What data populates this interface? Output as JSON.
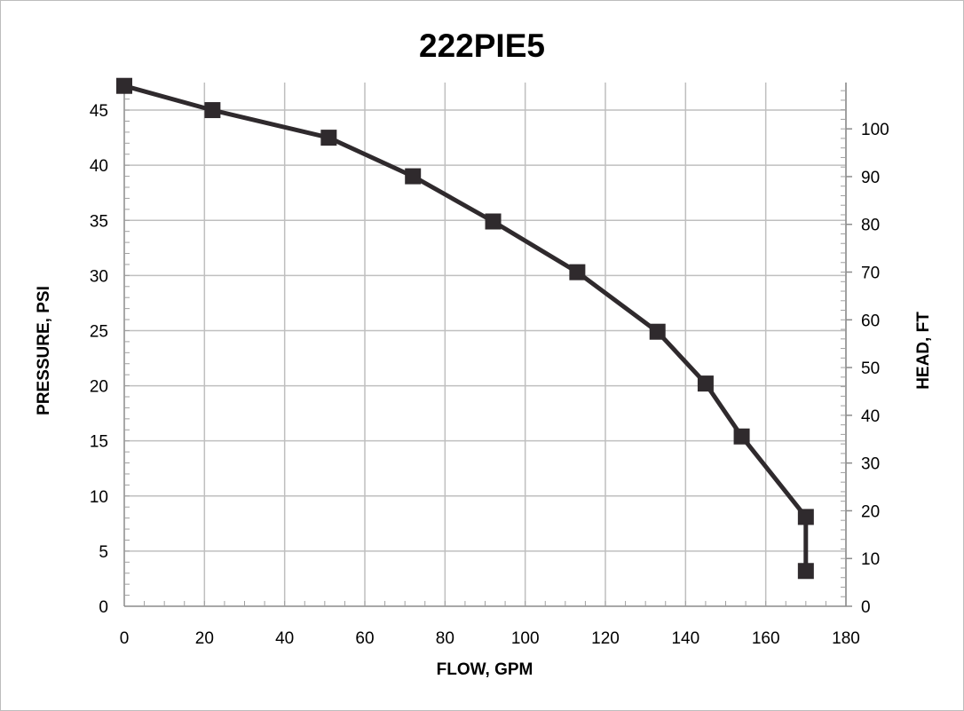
{
  "chart_data": {
    "type": "line",
    "title": "222PIE5",
    "xlabel": "FLOW, GPM",
    "ylabel": "PRESSURE, PSI",
    "y2label": "HEAD, FT",
    "xlim": [
      0,
      180
    ],
    "ylim": [
      0,
      47.5
    ],
    "y2lim": [
      0,
      109.7
    ],
    "x_ticks": [
      0,
      20,
      40,
      60,
      80,
      100,
      120,
      140,
      160,
      180
    ],
    "y_ticks": [
      0,
      5,
      10,
      15,
      20,
      25,
      30,
      35,
      40,
      45
    ],
    "y2_ticks": [
      0,
      10,
      20,
      30,
      40,
      50,
      60,
      70,
      80,
      90,
      100
    ],
    "grid": true,
    "legend": "none",
    "series": [
      {
        "x": [
          0,
          22,
          51,
          72,
          92,
          113,
          133,
          145,
          154,
          170,
          170
        ],
        "y": [
          47.2,
          45.0,
          42.5,
          39.0,
          34.9,
          30.3,
          24.9,
          20.2,
          15.4,
          8.1,
          3.2
        ],
        "marker": "square",
        "color": "#2f2a2d"
      }
    ]
  }
}
